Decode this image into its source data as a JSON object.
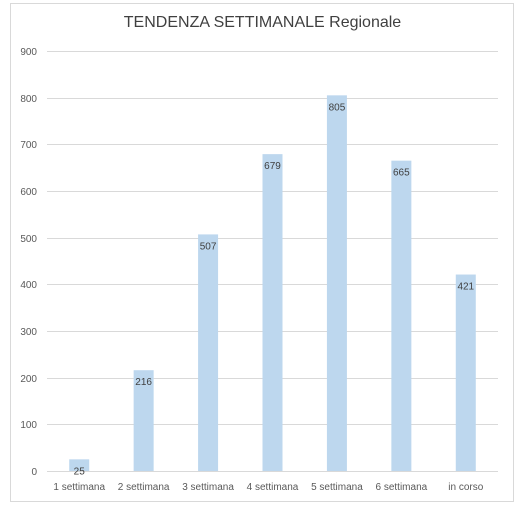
{
  "chart_data": {
    "type": "bar",
    "title": "TENDENZA SETTIMANALE Regionale",
    "xlabel": "",
    "ylabel": "",
    "categories": [
      "1 settimana",
      "2 settimana",
      "3 settimana",
      "4 settimana",
      "5 settimana",
      "6 settimana",
      "in corso"
    ],
    "values": [
      25,
      216,
      507,
      679,
      805,
      665,
      421
    ],
    "ylim": [
      0,
      900
    ],
    "yticks": [
      0,
      100,
      200,
      300,
      400,
      500,
      600,
      700,
      800,
      900
    ],
    "grid": true,
    "bar_color": "#bdd7ee",
    "data_labels": true
  }
}
